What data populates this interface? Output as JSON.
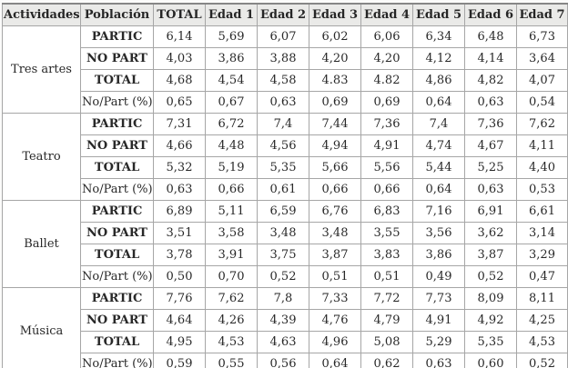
{
  "chart_data": {
    "type": "table",
    "title": "",
    "columns": [
      "Actividades",
      "Población",
      "TOTAL",
      "Edad 1",
      "Edad 2",
      "Edad 3",
      "Edad 4",
      "Edad 5",
      "Edad 6",
      "Edad 7"
    ],
    "groups": [
      {
        "activity": "Tres artes",
        "rows": [
          {
            "label": "PARTIC",
            "values": [
              "6,14",
              "5,69",
              "6,07",
              "6,02",
              "6,06",
              "6,34",
              "6,48",
              "6,73"
            ]
          },
          {
            "label": "NO PART",
            "values": [
              "4,03",
              "3,86",
              "3,88",
              "4,20",
              "4,20",
              "4,12",
              "4,14",
              "3,64"
            ]
          },
          {
            "label": "TOTAL",
            "values": [
              "4,68",
              "4,54",
              "4,58",
              "4.83",
              "4.82",
              "4,86",
              "4,82",
              "4,07"
            ]
          },
          {
            "label": "No/Part (%)",
            "values": [
              "0,65",
              "0,67",
              "0,63",
              "0,69",
              "0,69",
              "0,64",
              "0,63",
              "0,54"
            ]
          }
        ]
      },
      {
        "activity": "Teatro",
        "rows": [
          {
            "label": "PARTIC",
            "values": [
              "7,31",
              "6,72",
              "7,4",
              "7,44",
              "7,36",
              "7,4",
              "7,36",
              "7,62"
            ]
          },
          {
            "label": "NO PART",
            "values": [
              "4,66",
              "4,48",
              "4,56",
              "4,94",
              "4,91",
              "4,74",
              "4,67",
              "4,11"
            ]
          },
          {
            "label": "TOTAL",
            "values": [
              "5,32",
              "5,19",
              "5,35",
              "5,66",
              "5,56",
              "5,44",
              "5,25",
              "4,40"
            ]
          },
          {
            "label": "No/Part (%)",
            "values": [
              "0,63",
              "0,66",
              "0,61",
              "0,66",
              "0,66",
              "0,64",
              "0,63",
              "0,53"
            ]
          }
        ]
      },
      {
        "activity": "Ballet",
        "rows": [
          {
            "label": "PARTIC",
            "values": [
              "6,89",
              "5,11",
              "6,59",
              "6,76",
              "6,83",
              "7,16",
              "6,91",
              "6,61"
            ]
          },
          {
            "label": "NO PART",
            "values": [
              "3,51",
              "3,58",
              "3,48",
              "3,48",
              "3,55",
              "3,56",
              "3,62",
              "3,14"
            ]
          },
          {
            "label": "TOTAL",
            "values": [
              "3,78",
              "3,91",
              "3,75",
              "3,87",
              "3,83",
              "3,86",
              "3,87",
              "3,29"
            ]
          },
          {
            "label": "No/Part (%)",
            "values": [
              "0,50",
              "0,70",
              "0,52",
              "0,51",
              "0,51",
              "0,49",
              "0,52",
              "0,47"
            ]
          }
        ]
      },
      {
        "activity": "Música",
        "rows": [
          {
            "label": "PARTIC",
            "values": [
              "7,76",
              "7,62",
              "7,8",
              "7,33",
              "7,72",
              "7,73",
              "8,09",
              "8,11"
            ]
          },
          {
            "label": "NO PART",
            "values": [
              "4,64",
              "4,26",
              "4,39",
              "4,76",
              "4,79",
              "4,91",
              "4,92",
              "4,25"
            ]
          },
          {
            "label": "TOTAL",
            "values": [
              "4,95",
              "4,53",
              "4,63",
              "4,96",
              "5,08",
              "5,29",
              "5,35",
              "4,53"
            ]
          },
          {
            "label": "No/Part (%)",
            "values": [
              "0,59",
              "0,55",
              "0,56",
              "0,64",
              "0,62",
              "0,63",
              "0,60",
              "0,52"
            ]
          }
        ]
      }
    ],
    "colors": {
      "header_bg": "#eaeae8",
      "border": "#a6a6a6",
      "text": "#282828"
    },
    "layout": {
      "grid": true,
      "header_row_bold": true,
      "activity_column_rowspan": 4
    }
  }
}
